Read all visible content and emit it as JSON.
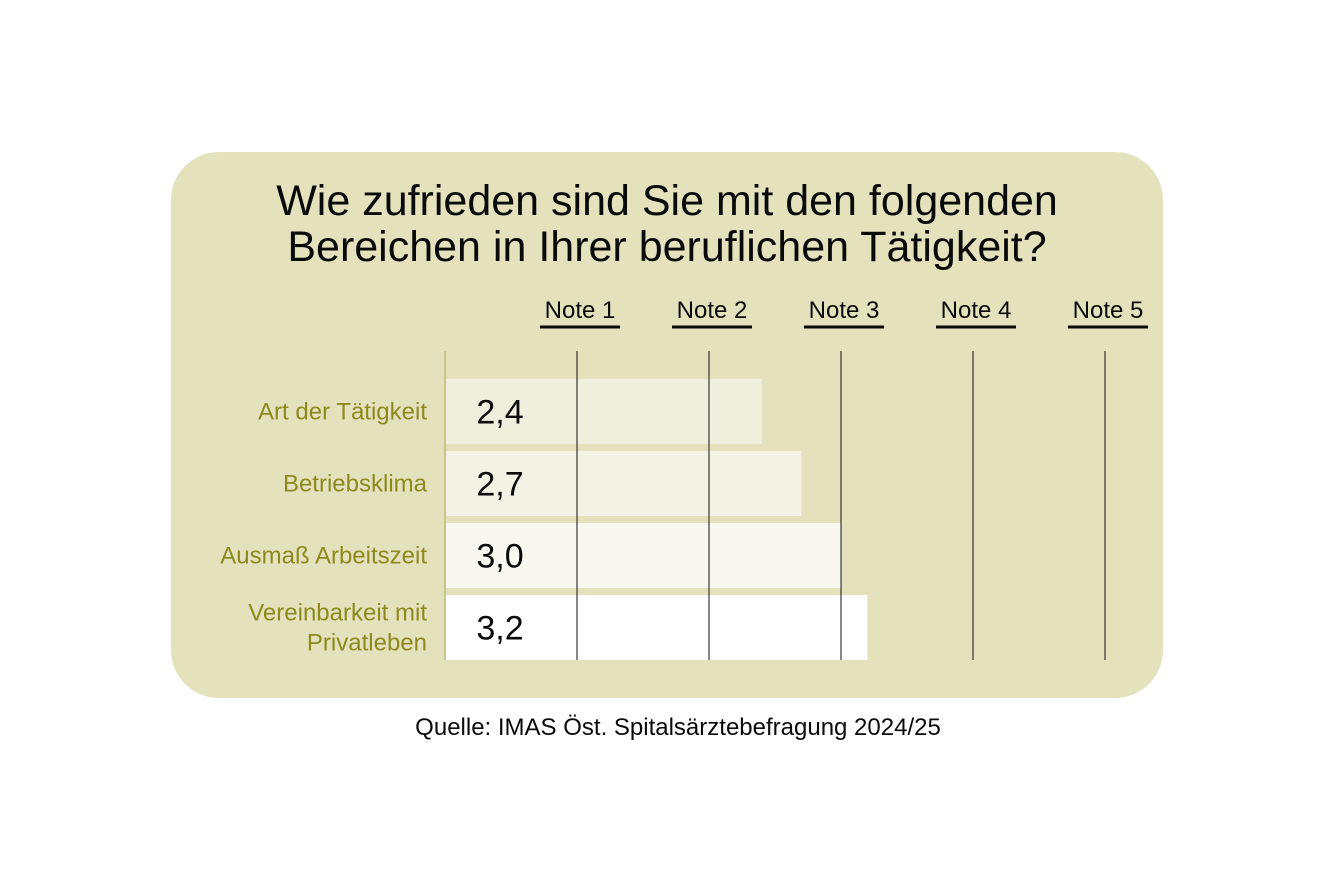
{
  "chart_data": {
    "type": "bar",
    "orientation": "horizontal",
    "title_lines": [
      "Wie zufrieden sind Sie mit den folgenden",
      "Bereichen in Ihrer beruflichen Tätigkeit?"
    ],
    "scale_labels": [
      "Note 1",
      "Note 2",
      "Note 3",
      "Note 4",
      "Note 5"
    ],
    "categories": [
      [
        "Art der Tätigkeit"
      ],
      [
        "Betriebsklima"
      ],
      [
        "Ausmaß Arbeitszeit"
      ],
      [
        "Vereinbarkeit mit",
        "Privatleben"
      ]
    ],
    "values": [
      2.4,
      2.7,
      3.0,
      3.2
    ],
    "value_labels": [
      "2,4",
      "2,7",
      "3,0",
      "3,2"
    ],
    "xlim": [
      0,
      5
    ],
    "grid": true,
    "source": "Quelle: IMAS Öst. Spitalsärztebefragung 2024/25",
    "colors": {
      "background": "#e4e2bd",
      "category_text": "#8c8a1e",
      "axis_line": "#c9c58a",
      "gridline": "#111111",
      "bar_fills": [
        "#f0efdd",
        "#f3f2e5",
        "#f8f8f0",
        "#ffffff"
      ]
    }
  }
}
